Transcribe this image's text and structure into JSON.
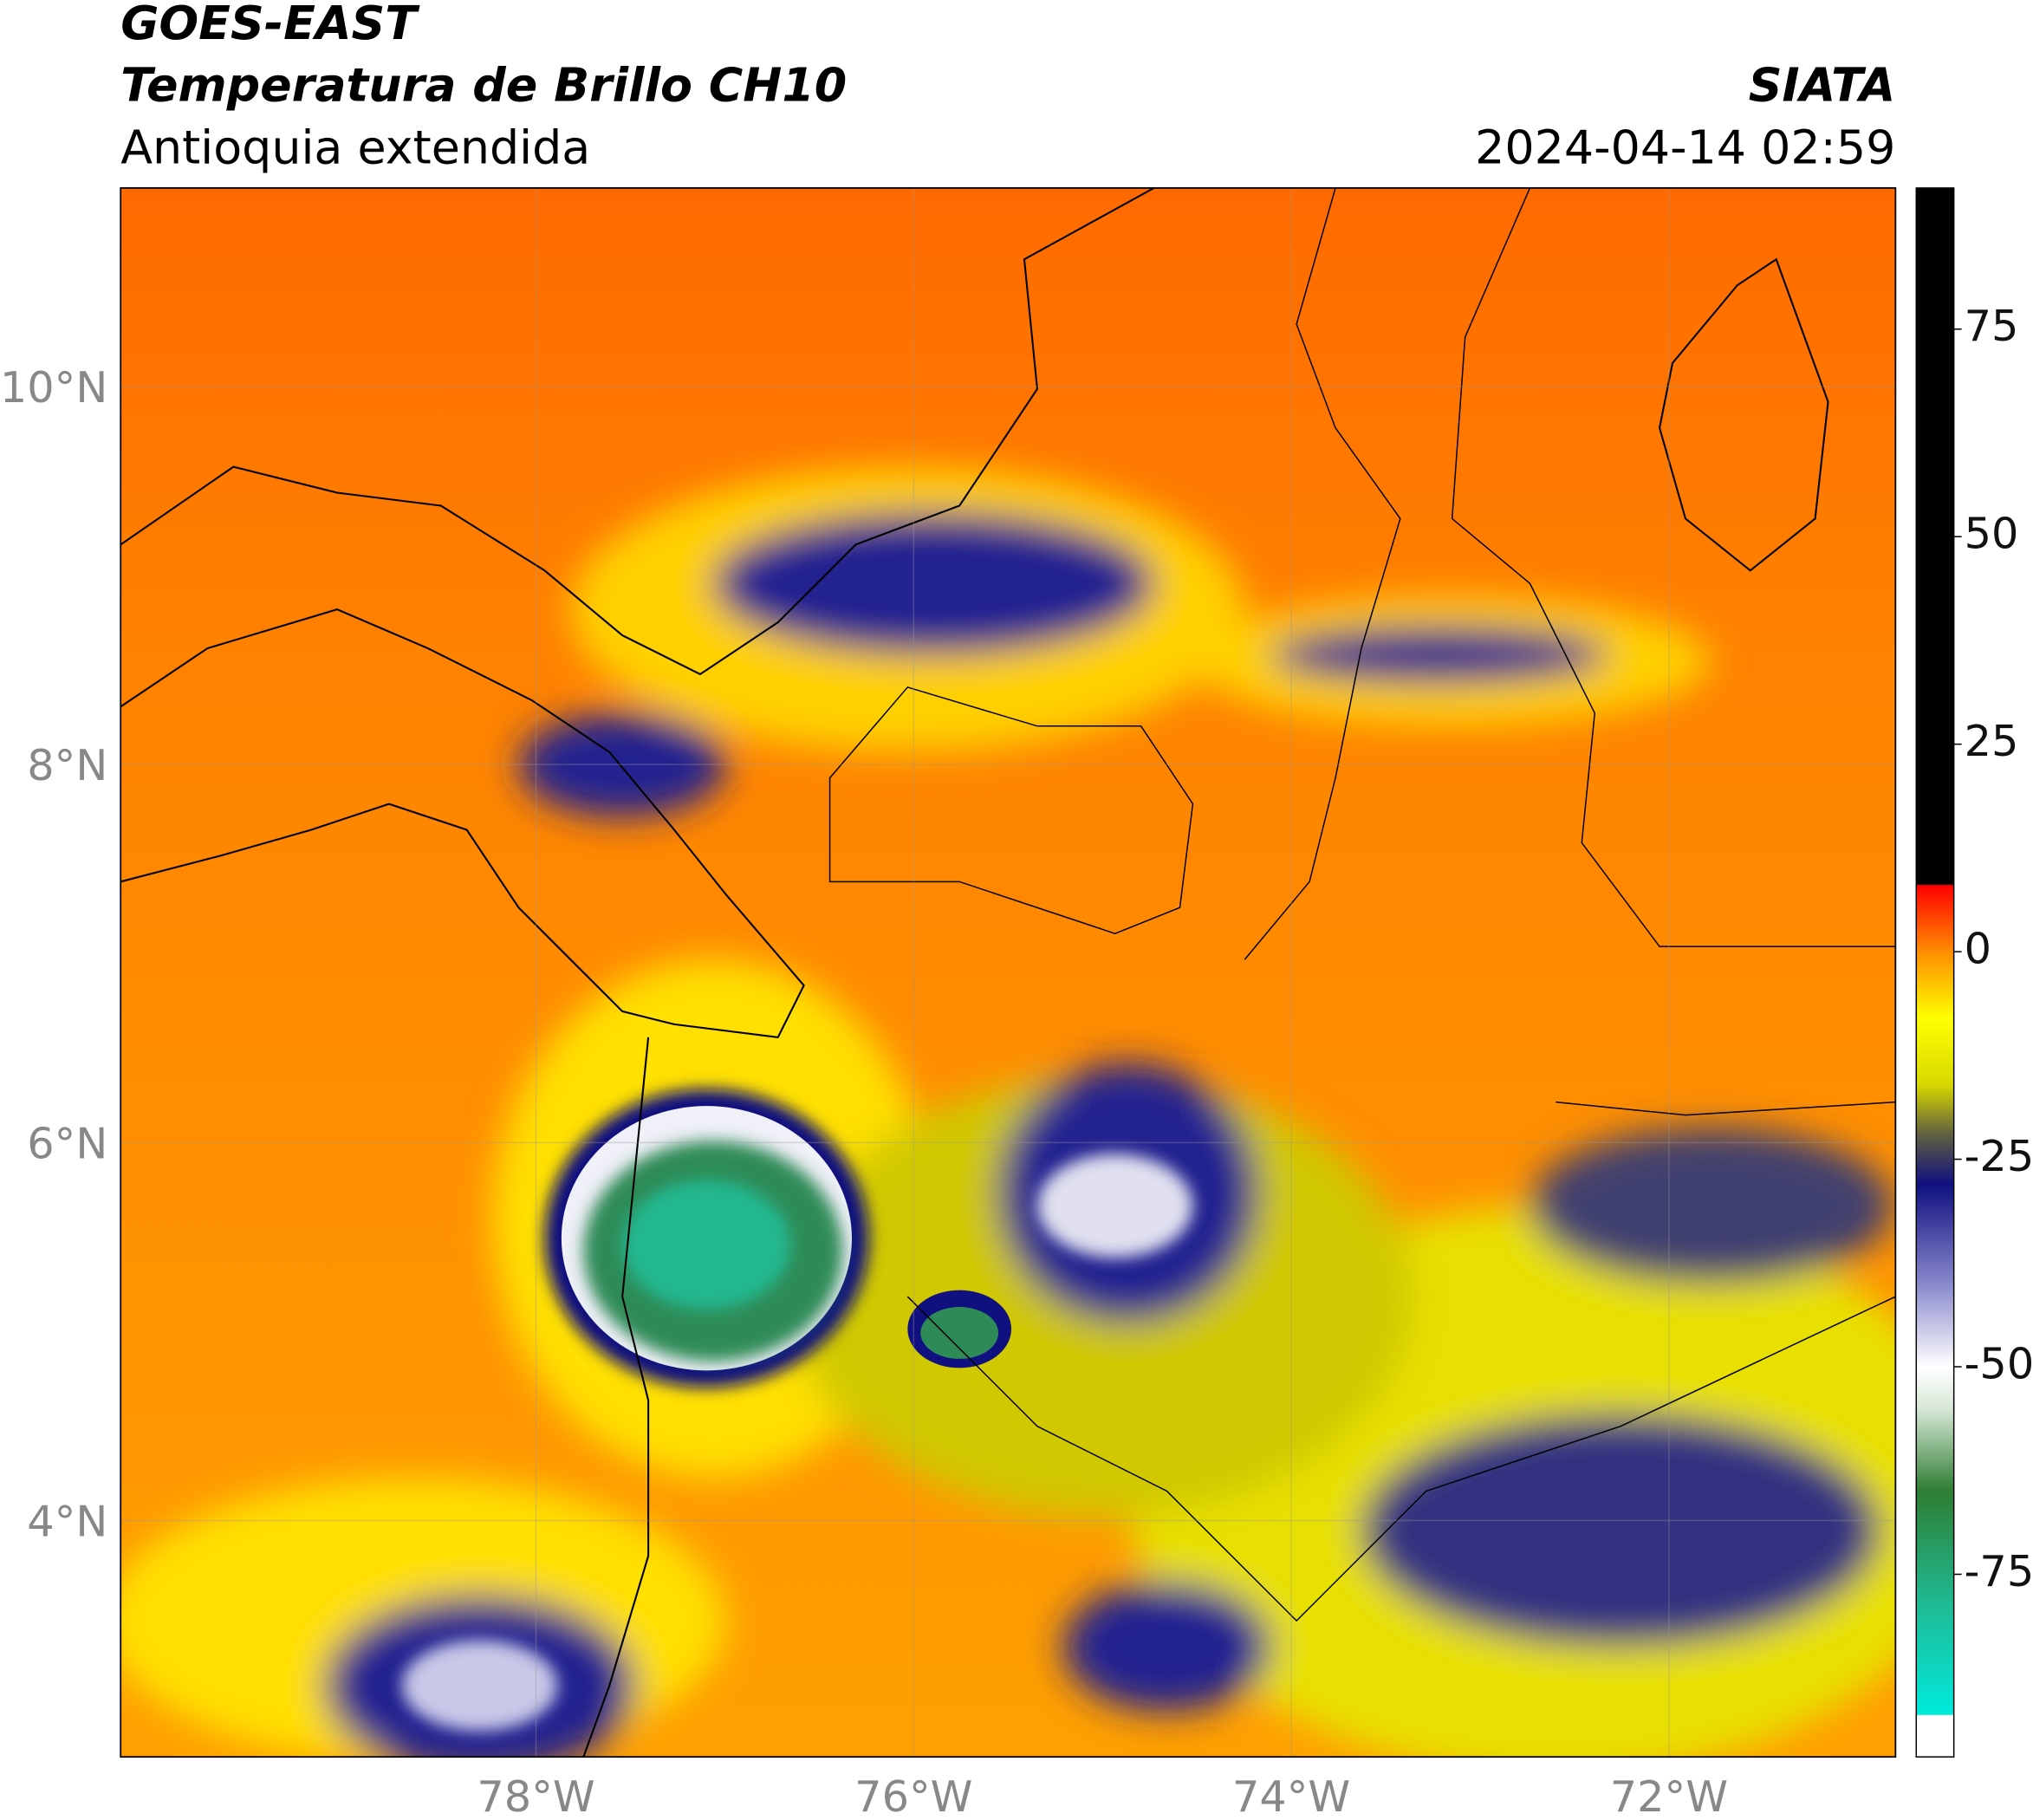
{
  "header": {
    "title": "GOES-EAST",
    "subtitle": "Temperatura de Brillo CH10",
    "region": "Antioquia extendida",
    "source": "SIATA",
    "datetime": "2024-04-14 02:59"
  },
  "map": {
    "xlim": [
      -80.2,
      -70.8
    ],
    "ylim": [
      2.75,
      11.05
    ],
    "xticks": [
      {
        "value": -78,
        "label": "78°W"
      },
      {
        "value": -76,
        "label": "76°W"
      },
      {
        "value": -74,
        "label": "74°W"
      },
      {
        "value": -72,
        "label": "72°W"
      }
    ],
    "yticks": [
      {
        "value": 4,
        "label": "4°N"
      },
      {
        "value": 6,
        "label": "6°N"
      },
      {
        "value": 8,
        "label": "8°N"
      },
      {
        "value": 10,
        "label": "10°N"
      }
    ],
    "grid": true
  },
  "colorbar": {
    "lim": [
      -97,
      92
    ],
    "ticks": [
      -75,
      -50,
      -25,
      0,
      25,
      50,
      75
    ],
    "colormap": [
      {
        "value": -97,
        "color": "#ffffff"
      },
      {
        "value": -92,
        "color": "#ffffff"
      },
      {
        "value": -91.9,
        "color": "#00eadc"
      },
      {
        "value": -78,
        "color": "#20b890"
      },
      {
        "value": -65,
        "color": "#2e7d32"
      },
      {
        "value": -55,
        "color": "#d8e8d8"
      },
      {
        "value": -50,
        "color": "#ffffff"
      },
      {
        "value": -40,
        "color": "#8888cc"
      },
      {
        "value": -28,
        "color": "#101080"
      },
      {
        "value": -22,
        "color": "#606040"
      },
      {
        "value": -16,
        "color": "#d8d800"
      },
      {
        "value": -8,
        "color": "#ffff00"
      },
      {
        "value": 0,
        "color": "#ff8c00"
      },
      {
        "value": 8,
        "color": "#ff0000"
      },
      {
        "value": 8.1,
        "color": "#000000"
      },
      {
        "value": 92,
        "color": "#000000"
      }
    ]
  }
}
